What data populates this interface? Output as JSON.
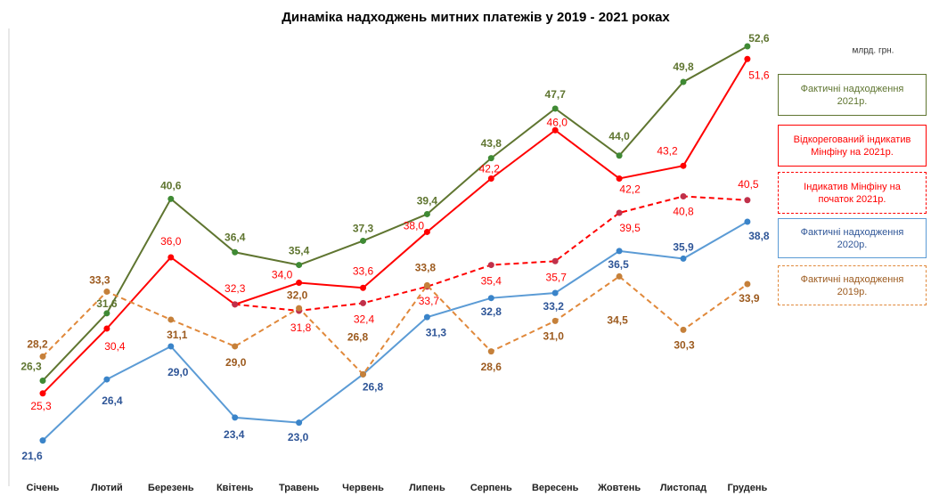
{
  "chart_data": {
    "type": "line",
    "title": "Динаміка надходжень митних платежів у 2019 - 2021 роках",
    "unit_label": "млрд. грн.",
    "categories": [
      "Січень",
      "Лютий",
      "Березень",
      "Квітень",
      "Травень",
      "Червень",
      "Липень",
      "Серпень",
      "Вересень",
      "Жовтень",
      "Листопад",
      "Грудень"
    ],
    "ylim": [
      18,
      54
    ],
    "series": [
      {
        "name": "Фактичні надходження 2021р.",
        "color": "#5f7530",
        "point_color": "#3f8a34",
        "label_color": "#5f7530",
        "dashed": false,
        "values": [
          26.3,
          31.6,
          40.6,
          36.4,
          35.4,
          37.3,
          39.4,
          43.8,
          47.7,
          44.0,
          49.8,
          52.6
        ],
        "value_labels": [
          "26,3",
          "31,6",
          "40,6",
          "36,4",
          "35,4",
          "37,3",
          "39,4",
          "43,8",
          "47,7",
          "44,0",
          "49,8",
          "52,6"
        ]
      },
      {
        "name": "Відкорегований індикатив Мінфіну на 2021р.",
        "color": "#ff0000",
        "point_color": "#ff0000",
        "label_color": "#ff0000",
        "dashed": false,
        "values": [
          25.3,
          30.4,
          36.0,
          32.3,
          34.0,
          33.6,
          38.0,
          42.2,
          46.0,
          42.2,
          43.2,
          51.6
        ],
        "value_labels": [
          "25,3",
          "30,4",
          "36,0",
          "32,3",
          "34,0",
          "33,6",
          "38,0",
          "42,2",
          "46,0",
          "42,2",
          "43,2",
          "51,6"
        ]
      },
      {
        "name": "Індикатив Мінфіну на початок 2021р.",
        "color": "#ff0000",
        "point_color": "#c0304a",
        "label_color": "#ff0000",
        "dashed": true,
        "values": [
          null,
          null,
          null,
          32.3,
          31.8,
          32.4,
          33.7,
          35.4,
          35.7,
          39.5,
          40.8,
          40.5
        ],
        "value_labels": [
          null,
          null,
          null,
          null,
          "31,8",
          "32,4",
          "33,7",
          "35,4",
          "35,7",
          "39,5",
          "40,8",
          "40,5"
        ]
      },
      {
        "name": "Фактичні надходження 2020р.",
        "color": "#5b9bd5",
        "point_color": "#3a84c9",
        "label_color": "#2e5597",
        "dashed": false,
        "values": [
          21.6,
          26.4,
          29.0,
          23.4,
          23.0,
          26.8,
          31.3,
          32.8,
          33.2,
          36.5,
          35.9,
          38.8
        ],
        "value_labels": [
          "21,6",
          "26,4",
          "29,0",
          "23,4",
          "23,0",
          "26,8",
          "31,3",
          "32,8",
          "33,2",
          "36,5",
          "35,9",
          "38,8"
        ]
      },
      {
        "name": "Фактичні надходження 2019р.",
        "color": "#e0883a",
        "point_color": "#c5803a",
        "label_color": "#9c5a1e",
        "dashed": true,
        "values": [
          28.2,
          33.3,
          31.1,
          29.0,
          32.0,
          26.8,
          33.8,
          28.6,
          31.0,
          34.5,
          30.3,
          33.9
        ],
        "value_labels": [
          "28,2",
          "33,3",
          "31,1",
          "29,0",
          "32,0",
          "26,8",
          "33,8",
          "28,6",
          "31,0",
          "34,5",
          "30,3",
          "33,9"
        ]
      }
    ]
  }
}
